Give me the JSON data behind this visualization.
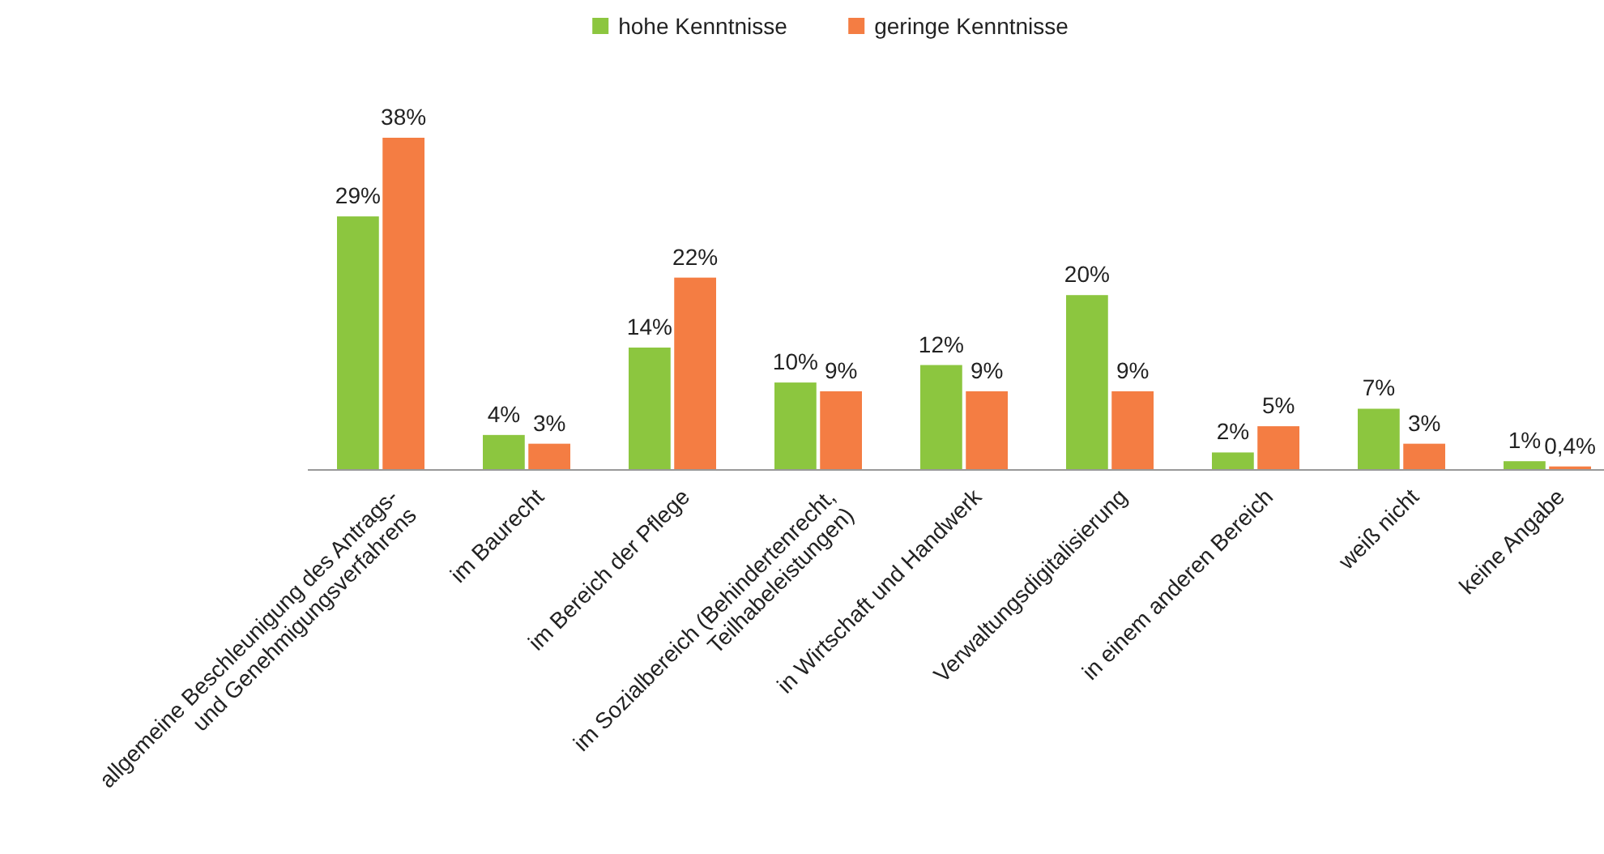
{
  "chart_data": {
    "type": "bar",
    "categories": [
      "allgemeine Beschleunigung des Antrags-\nund Genehmigungsverfahrens",
      "im Baurecht",
      "im Bereich der Pflege",
      "im Sozialbereich (Behindertenrecht,\nTeilhabeleistungen)",
      "in Wirtschaft und Handwerk",
      "Verwaltungsdigitalisierung",
      "in einem anderen Bereich",
      "weiß nicht",
      "keine Angabe"
    ],
    "series": [
      {
        "name": "hohe Kenntnisse",
        "color": "#8cc63f",
        "values": [
          29,
          4,
          14,
          10,
          12,
          20,
          2,
          7,
          1
        ],
        "value_labels": [
          "29%",
          "4%",
          "14%",
          "10%",
          "12%",
          "20%",
          "2%",
          "7%",
          "1%"
        ]
      },
      {
        "name": "geringe Kenntnisse",
        "color": "#f47d43",
        "values": [
          38,
          3,
          22,
          9,
          9,
          9,
          5,
          3,
          0.4
        ],
        "value_labels": [
          "38%",
          "3%",
          "22%",
          "9%",
          "9%",
          "9%",
          "5%",
          "3%",
          "0,4%"
        ]
      }
    ],
    "legend": "top"
  }
}
